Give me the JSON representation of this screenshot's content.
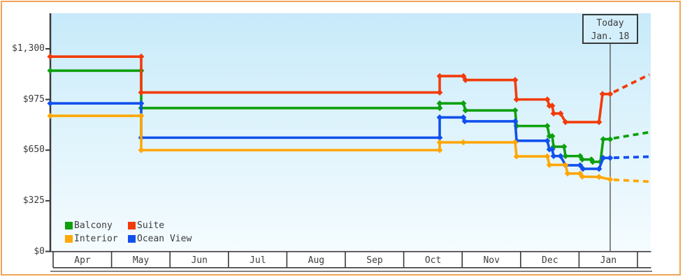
{
  "today": {
    "line1": "Today",
    "line2": "Jan. 18"
  },
  "legend": {
    "items": [
      {
        "label": "Balcony",
        "color": "#0da00d"
      },
      {
        "label": "Suite",
        "color": "#f23b09"
      },
      {
        "label": "Interior",
        "color": "#ffa706"
      },
      {
        "label": "Ocean View",
        "color": "#1150ee"
      }
    ]
  },
  "chart_data": {
    "type": "line",
    "subtype": "step-price-history",
    "unit": "USD",
    "title": "",
    "axis_color": "#3a3a3a",
    "today_line_color": "#555555",
    "x_axis": {
      "months": [
        "Apr",
        "May",
        "Jun",
        "Jul",
        "Aug",
        "Sep",
        "Oct",
        "Nov",
        "Dec",
        "Jan"
      ]
    },
    "y_axis": {
      "max": 1300,
      "ticks": [
        {
          "label": "$1,300",
          "value": 1300
        },
        {
          "label": "$975",
          "value": 975
        },
        {
          "label": "$650",
          "value": 650
        },
        {
          "label": "$325",
          "value": 325
        },
        {
          "label": "$0",
          "value": 0
        }
      ]
    },
    "today": {
      "x": 9.533,
      "date_label": "Jan. 18"
    },
    "series": [
      {
        "name": "Balcony",
        "color": "#0da00d",
        "current_price": 720,
        "points": [
          [
            -0.05,
            1160
          ],
          [
            1.507,
            1160
          ],
          [
            1.507,
            920
          ],
          [
            6.615,
            920
          ],
          [
            6.615,
            950
          ],
          [
            7.021,
            950
          ],
          [
            7.057,
            905
          ],
          [
            7.907,
            905
          ],
          [
            7.931,
            805
          ],
          [
            8.457,
            805
          ],
          [
            8.493,
            740
          ],
          [
            8.541,
            740
          ],
          [
            8.565,
            672
          ],
          [
            8.744,
            672
          ],
          [
            8.768,
            612
          ],
          [
            9.019,
            612
          ],
          [
            9.055,
            590
          ],
          [
            9.211,
            590
          ],
          [
            9.234,
            575
          ],
          [
            9.366,
            575
          ],
          [
            9.414,
            720
          ],
          [
            9.533,
            720
          ]
        ],
        "projection": [
          [
            9.593,
            726
          ],
          [
            10.203,
            765
          ]
        ]
      },
      {
        "name": "Ocean View",
        "color": "#1150ee",
        "current_price": 600,
        "points": [
          [
            -0.05,
            950
          ],
          [
            1.507,
            950
          ],
          [
            1.507,
            730
          ],
          [
            6.615,
            730
          ],
          [
            6.615,
            860
          ],
          [
            7.021,
            860
          ],
          [
            7.045,
            835
          ],
          [
            7.907,
            835
          ],
          [
            7.931,
            710
          ],
          [
            8.457,
            710
          ],
          [
            8.493,
            655
          ],
          [
            8.541,
            655
          ],
          [
            8.565,
            612
          ],
          [
            8.684,
            612
          ],
          [
            8.768,
            553
          ],
          [
            9.019,
            553
          ],
          [
            9.067,
            530
          ],
          [
            9.342,
            530
          ],
          [
            9.414,
            600
          ],
          [
            9.533,
            600
          ]
        ],
        "projection": [
          [
            9.593,
            601
          ],
          [
            10.203,
            608
          ]
        ]
      },
      {
        "name": "Interior",
        "color": "#ffa706",
        "current_price": 462,
        "points": [
          [
            -0.05,
            870
          ],
          [
            1.507,
            870
          ],
          [
            1.507,
            650
          ],
          [
            6.615,
            650
          ],
          [
            6.615,
            700
          ],
          [
            7.021,
            700
          ],
          [
            7.907,
            700
          ],
          [
            7.931,
            610
          ],
          [
            8.457,
            610
          ],
          [
            8.493,
            555
          ],
          [
            8.768,
            555
          ],
          [
            8.804,
            500
          ],
          [
            9.019,
            500
          ],
          [
            9.055,
            480
          ],
          [
            9.342,
            478
          ],
          [
            9.533,
            462
          ]
        ],
        "projection": [
          [
            9.593,
            460
          ],
          [
            10.203,
            448
          ]
        ]
      },
      {
        "name": "Suite",
        "color": "#f23b09",
        "current_price": 1010,
        "points": [
          [
            -0.05,
            1250
          ],
          [
            1.507,
            1250
          ],
          [
            1.507,
            1020
          ],
          [
            6.615,
            1020
          ],
          [
            6.615,
            1125
          ],
          [
            7.021,
            1125
          ],
          [
            7.057,
            1100
          ],
          [
            7.907,
            1100
          ],
          [
            7.931,
            975
          ],
          [
            8.457,
            975
          ],
          [
            8.493,
            935
          ],
          [
            8.541,
            935
          ],
          [
            8.565,
            885
          ],
          [
            8.684,
            885
          ],
          [
            8.768,
            830
          ],
          [
            9.342,
            830
          ],
          [
            9.402,
            1010
          ],
          [
            9.533,
            1010
          ]
        ],
        "projection": [
          [
            9.593,
            1022
          ],
          [
            10.203,
            1135
          ]
        ]
      }
    ]
  }
}
